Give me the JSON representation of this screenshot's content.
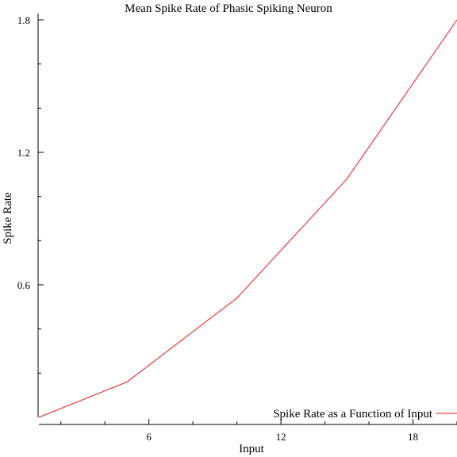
{
  "chart_data": {
    "type": "line",
    "title": "Mean Spike Rate of Phasic Spiking Neuron",
    "xlabel": "Input",
    "ylabel": "Spike Rate",
    "xlim": [
      1,
      20
    ],
    "ylim": [
      0,
      1.8
    ],
    "x_ticks_major": [
      6,
      12,
      18
    ],
    "x_ticks_minor": [
      2,
      4,
      8,
      10,
      14,
      16,
      20
    ],
    "y_ticks_major": [
      0.6,
      1.2,
      1.8
    ],
    "y_ticks_minor": [
      0.2,
      0.4,
      0.8,
      1.0,
      1.4,
      1.6
    ],
    "tick_labels": {
      "x": [
        "6",
        "12",
        "18"
      ],
      "y": [
        "0.6",
        "1.2",
        "1.8"
      ]
    },
    "grid": false,
    "legend_position": "bottom-right",
    "series": [
      {
        "name": "Spike Rate as a Function of Input",
        "color": "#e8474c",
        "x": [
          1,
          5,
          10,
          15,
          20
        ],
        "y": [
          0.0,
          0.16,
          0.54,
          1.08,
          1.8
        ]
      }
    ]
  }
}
